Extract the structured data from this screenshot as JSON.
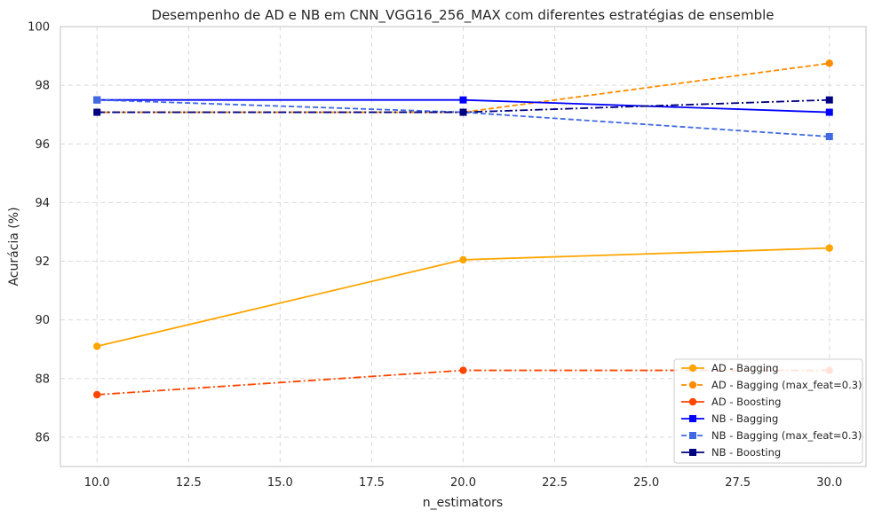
{
  "chart_data": {
    "type": "line",
    "title": "Desempenho de AD e NB em CNN_VGG16_256_MAX com diferentes estratégias de ensemble",
    "xlabel": "n_estimators",
    "ylabel": "Acurácia (%)",
    "xlim": [
      9.0,
      31.0
    ],
    "ylim": [
      85,
      100
    ],
    "xticks": [
      "10.0",
      "12.5",
      "15.0",
      "17.5",
      "20.0",
      "22.5",
      "25.0",
      "27.5",
      "30.0"
    ],
    "yticks": [
      "86",
      "88",
      "90",
      "92",
      "94",
      "96",
      "98",
      "100"
    ],
    "grid": true,
    "legend_position": "bottom-right",
    "x": [
      10,
      20,
      30
    ],
    "series": [
      {
        "name": "AD - Bagging",
        "values": [
          89.1,
          92.05,
          92.45
        ],
        "color": "#ffa500",
        "dash": "solid",
        "marker": "circle"
      },
      {
        "name": "AD - Bagging (max_feat=0.3)",
        "values": [
          97.08,
          97.08,
          98.75
        ],
        "color": "#ff8c00",
        "dash": "dashed",
        "marker": "circle"
      },
      {
        "name": "AD - Boosting",
        "values": [
          87.45,
          88.28,
          88.28
        ],
        "color": "#ff4500",
        "dash": "dashdot",
        "marker": "circle"
      },
      {
        "name": "NB - Bagging",
        "values": [
          97.5,
          97.5,
          97.08
        ],
        "color": "#0000ff",
        "dash": "solid",
        "marker": "square"
      },
      {
        "name": "NB - Bagging (max_feat=0.3)",
        "values": [
          97.5,
          97.08,
          96.25
        ],
        "color": "#4169e1",
        "dash": "dashed",
        "marker": "square"
      },
      {
        "name": "NB - Boosting",
        "values": [
          97.08,
          97.08,
          97.5
        ],
        "color": "#000080",
        "dash": "dashdot",
        "marker": "square"
      }
    ]
  }
}
